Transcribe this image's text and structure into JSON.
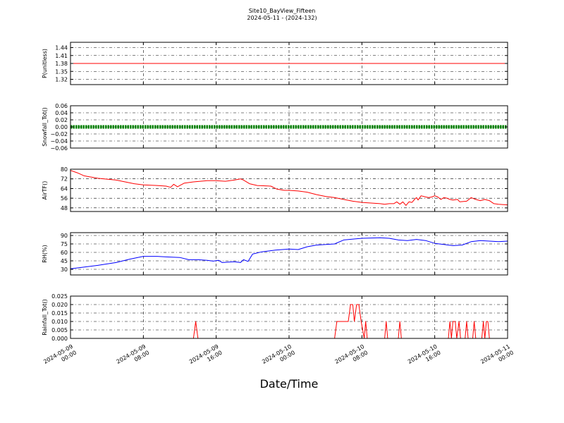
{
  "chart_data": {
    "type": "line",
    "title": "Site10_BayView_Fifteen",
    "subtitle": "2024-05-11 - (2024-132)",
    "xlabel": "Date/Time",
    "x_range": [
      "2024-05-09 00:00",
      "2024-05-11 00:00"
    ],
    "x_ticks": [
      "2024-05-09 00:00",
      "2024-05-09 08:00",
      "2024-05-09 16:00",
      "2024-05-10 00:00",
      "2024-05-10 08:00",
      "2024-05-10 16:00",
      "2024-05-11 00:00"
    ],
    "x_tick_labels": [
      [
        "2024-05-09",
        "00:00"
      ],
      [
        "2024-05-09",
        "08:00"
      ],
      [
        "2024-05-09",
        "16:00"
      ],
      [
        "2024-05-10",
        "00:00"
      ],
      [
        "2024-05-10",
        "08:00"
      ],
      [
        "2024-05-10",
        "16:00"
      ],
      [
        "2024-05-11",
        "00:00"
      ]
    ],
    "grid": true,
    "panels": [
      {
        "ylabel": "P(unitless)",
        "ylim": [
          1.3,
          1.46
        ],
        "yticks": [
          1.32,
          1.35,
          1.38,
          1.41,
          1.44
        ],
        "ytick_labels": [
          "1.32",
          "1.35",
          "1.38",
          "1.41",
          "1.44"
        ],
        "color": "#ff0000",
        "style": "line",
        "points": [
          [
            "2024-05-09 00:00",
            1.38
          ],
          [
            "2024-05-11 00:00",
            1.38
          ]
        ]
      },
      {
        "ylabel": "Snowfall_Tot()",
        "ylim": [
          -0.06,
          0.06
        ],
        "yticks": [
          -0.06,
          -0.04,
          -0.02,
          0.0,
          0.02,
          0.04,
          0.06
        ],
        "ytick_labels": [
          "−0.06",
          "−0.04",
          "−0.02",
          "0.00",
          "0.02",
          "0.04",
          "0.06"
        ],
        "color": "#008000",
        "style": "dense",
        "points": [
          [
            "2024-05-09 00:00",
            0.0
          ],
          [
            "2024-05-11 00:00",
            0.0
          ]
        ]
      },
      {
        "ylabel": "AirTF()",
        "ylim": [
          45,
          80
        ],
        "yticks": [
          48,
          56,
          64,
          72,
          80
        ],
        "ytick_labels": [
          "48",
          "56",
          "64",
          "72",
          "80"
        ],
        "color": "#ff0000",
        "style": "line",
        "points": [
          [
            "2024-05-09 00:00",
            79
          ],
          [
            "2024-05-09 00:45",
            77
          ],
          [
            "2024-05-09 01:30",
            74.5
          ],
          [
            "2024-05-09 03:00",
            72.5
          ],
          [
            "2024-05-09 05:00",
            71
          ],
          [
            "2024-05-09 07:00",
            68
          ],
          [
            "2024-05-09 08:00",
            67
          ],
          [
            "2024-05-09 09:30",
            66.5
          ],
          [
            "2024-05-09 10:30",
            66
          ],
          [
            "2024-05-09 11:00",
            65
          ],
          [
            "2024-05-09 11:20",
            67.5
          ],
          [
            "2024-05-09 11:45",
            65.5
          ],
          [
            "2024-05-09 12:30",
            68.5
          ],
          [
            "2024-05-09 13:30",
            69.5
          ],
          [
            "2024-05-09 15:00",
            70.5
          ],
          [
            "2024-05-09 16:00",
            70.5
          ],
          [
            "2024-05-09 17:00",
            70
          ],
          [
            "2024-05-09 18:00",
            71
          ],
          [
            "2024-05-09 18:40",
            72
          ],
          [
            "2024-05-09 19:00",
            71
          ],
          [
            "2024-05-09 19:40",
            68
          ],
          [
            "2024-05-09 20:30",
            66.5
          ],
          [
            "2024-05-09 22:00",
            66
          ],
          [
            "2024-05-09 22:40",
            63.5
          ],
          [
            "2024-05-09 23:30",
            62.5
          ],
          [
            "2024-05-10 00:00",
            62.5
          ],
          [
            "2024-05-10 01:00",
            62
          ],
          [
            "2024-05-10 02:00",
            61
          ],
          [
            "2024-05-10 03:00",
            59
          ],
          [
            "2024-05-10 04:00",
            57.5
          ],
          [
            "2024-05-10 05:00",
            56.5
          ],
          [
            "2024-05-10 06:00",
            55
          ],
          [
            "2024-05-10 07:00",
            53.5
          ],
          [
            "2024-05-10 08:00",
            52.5
          ],
          [
            "2024-05-10 09:00",
            52
          ],
          [
            "2024-05-10 10:00",
            51.5
          ],
          [
            "2024-05-10 10:30",
            51
          ],
          [
            "2024-05-10 11:00",
            51.5
          ],
          [
            "2024-05-10 11:30",
            51.5
          ],
          [
            "2024-05-10 11:50",
            53
          ],
          [
            "2024-05-10 12:10",
            51
          ],
          [
            "2024-05-10 12:30",
            53
          ],
          [
            "2024-05-10 12:50",
            50
          ],
          [
            "2024-05-10 13:10",
            53
          ],
          [
            "2024-05-10 13:30",
            52.5
          ],
          [
            "2024-05-10 13:50",
            55.5
          ],
          [
            "2024-05-10 14:00",
            56.5
          ],
          [
            "2024-05-10 14:10",
            54.5
          ],
          [
            "2024-05-10 14:30",
            58
          ],
          [
            "2024-05-10 15:00",
            57
          ],
          [
            "2024-05-10 15:20",
            56.5
          ],
          [
            "2024-05-10 15:40",
            57
          ],
          [
            "2024-05-10 16:00",
            58
          ],
          [
            "2024-05-10 16:20",
            57
          ],
          [
            "2024-05-10 16:40",
            55
          ],
          [
            "2024-05-10 17:00",
            56.5
          ],
          [
            "2024-05-10 17:20",
            56
          ],
          [
            "2024-05-10 17:40",
            55
          ],
          [
            "2024-05-10 18:00",
            54.5
          ],
          [
            "2024-05-10 18:30",
            55
          ],
          [
            "2024-05-10 18:45",
            53
          ],
          [
            "2024-05-10 19:30",
            53.5
          ],
          [
            "2024-05-10 20:00",
            56.5
          ],
          [
            "2024-05-10 20:30",
            55
          ],
          [
            "2024-05-10 21:00",
            54
          ],
          [
            "2024-05-10 21:30",
            55
          ],
          [
            "2024-05-10 22:00",
            54
          ],
          [
            "2024-05-10 22:30",
            51.5
          ],
          [
            "2024-05-10 23:00",
            51
          ],
          [
            "2024-05-11 00:00",
            50.5
          ]
        ]
      },
      {
        "ylabel": "RH(%)",
        "ylim": [
          20,
          95
        ],
        "yticks": [
          30,
          45,
          60,
          75,
          90
        ],
        "ytick_labels": [
          "30",
          "45",
          "60",
          "75",
          "90"
        ],
        "color": "#0000ff",
        "style": "line",
        "points": [
          [
            "2024-05-09 00:00",
            31
          ],
          [
            "2024-05-09 01:00",
            33
          ],
          [
            "2024-05-09 03:00",
            37
          ],
          [
            "2024-05-09 05:00",
            42
          ],
          [
            "2024-05-09 06:30",
            48
          ],
          [
            "2024-05-09 08:00",
            53
          ],
          [
            "2024-05-09 09:30",
            53
          ],
          [
            "2024-05-09 10:30",
            52
          ],
          [
            "2024-05-09 12:00",
            51
          ],
          [
            "2024-05-09 13:00",
            47
          ],
          [
            "2024-05-09 14:00",
            47
          ],
          [
            "2024-05-09 15:00",
            46
          ],
          [
            "2024-05-09 15:40",
            44.5
          ],
          [
            "2024-05-09 16:15",
            46
          ],
          [
            "2024-05-09 16:40",
            42
          ],
          [
            "2024-05-09 17:30",
            43
          ],
          [
            "2024-05-09 18:00",
            43.5
          ],
          [
            "2024-05-09 18:40",
            42
          ],
          [
            "2024-05-09 19:00",
            47
          ],
          [
            "2024-05-09 19:30",
            44
          ],
          [
            "2024-05-09 20:00",
            57
          ],
          [
            "2024-05-09 21:00",
            61
          ],
          [
            "2024-05-09 22:30",
            64
          ],
          [
            "2024-05-10 00:00",
            66
          ],
          [
            "2024-05-10 01:00",
            65
          ],
          [
            "2024-05-10 02:00",
            70
          ],
          [
            "2024-05-10 03:00",
            73
          ],
          [
            "2024-05-10 05:00",
            75
          ],
          [
            "2024-05-10 06:00",
            82
          ],
          [
            "2024-05-10 08:00",
            85
          ],
          [
            "2024-05-10 10:00",
            86
          ],
          [
            "2024-05-10 11:00",
            85
          ],
          [
            "2024-05-10 12:00",
            82
          ],
          [
            "2024-05-10 13:00",
            81
          ],
          [
            "2024-05-10 14:00",
            83
          ],
          [
            "2024-05-10 15:00",
            81
          ],
          [
            "2024-05-10 16:00",
            76
          ],
          [
            "2024-05-10 17:00",
            74
          ],
          [
            "2024-05-10 18:00",
            72
          ],
          [
            "2024-05-10 19:00",
            73
          ],
          [
            "2024-05-10 20:00",
            79
          ],
          [
            "2024-05-10 21:00",
            81
          ],
          [
            "2024-05-10 22:00",
            80
          ],
          [
            "2024-05-10 23:00",
            79
          ],
          [
            "2024-05-11 00:00",
            80
          ]
        ]
      },
      {
        "ylabel": "Rainfall_Tot()",
        "ylim": [
          0,
          0.025
        ],
        "yticks": [
          0.0,
          0.005,
          0.01,
          0.015,
          0.02,
          0.025
        ],
        "ytick_labels": [
          "0.000",
          "0.005",
          "0.010",
          "0.015",
          "0.020",
          "0.025"
        ],
        "color": "#ff0000",
        "style": "line",
        "points": [
          [
            "2024-05-09 00:00",
            0
          ],
          [
            "2024-05-09 13:30",
            0
          ],
          [
            "2024-05-09 13:45",
            0.01
          ],
          [
            "2024-05-09 14:00",
            0
          ],
          [
            "2024-05-10 05:00",
            0
          ],
          [
            "2024-05-10 05:15",
            0.01
          ],
          [
            "2024-05-10 06:30",
            0.01
          ],
          [
            "2024-05-10 06:45",
            0.02
          ],
          [
            "2024-05-10 07:00",
            0.02
          ],
          [
            "2024-05-10 07:10",
            0.01
          ],
          [
            "2024-05-10 07:25",
            0.02
          ],
          [
            "2024-05-10 07:40",
            0.02
          ],
          [
            "2024-05-10 07:55",
            0.01
          ],
          [
            "2024-05-10 08:15",
            0
          ],
          [
            "2024-05-10 08:25",
            0.01
          ],
          [
            "2024-05-10 08:35",
            0
          ],
          [
            "2024-05-10 10:30",
            0
          ],
          [
            "2024-05-10 10:40",
            0.01
          ],
          [
            "2024-05-10 10:50",
            0
          ],
          [
            "2024-05-10 12:00",
            0
          ],
          [
            "2024-05-10 12:10",
            0.01
          ],
          [
            "2024-05-10 12:20",
            0
          ],
          [
            "2024-05-10 17:30",
            0
          ],
          [
            "2024-05-10 17:40",
            0.01
          ],
          [
            "2024-05-10 17:50",
            0
          ],
          [
            "2024-05-10 18:00",
            0.01
          ],
          [
            "2024-05-10 18:15",
            0.01
          ],
          [
            "2024-05-10 18:25",
            0
          ],
          [
            "2024-05-10 18:40",
            0.01
          ],
          [
            "2024-05-10 18:50",
            0
          ],
          [
            "2024-05-10 19:20",
            0
          ],
          [
            "2024-05-10 19:30",
            0.01
          ],
          [
            "2024-05-10 19:40",
            0
          ],
          [
            "2024-05-10 20:10",
            0
          ],
          [
            "2024-05-10 20:20",
            0.01
          ],
          [
            "2024-05-10 20:30",
            0
          ],
          [
            "2024-05-10 21:10",
            0
          ],
          [
            "2024-05-10 21:20",
            0.01
          ],
          [
            "2024-05-10 21:30",
            0
          ],
          [
            "2024-05-10 21:40",
            0.01
          ],
          [
            "2024-05-10 21:50",
            0.01
          ],
          [
            "2024-05-10 22:00",
            0
          ],
          [
            "2024-05-11 00:00",
            0
          ]
        ]
      }
    ]
  }
}
